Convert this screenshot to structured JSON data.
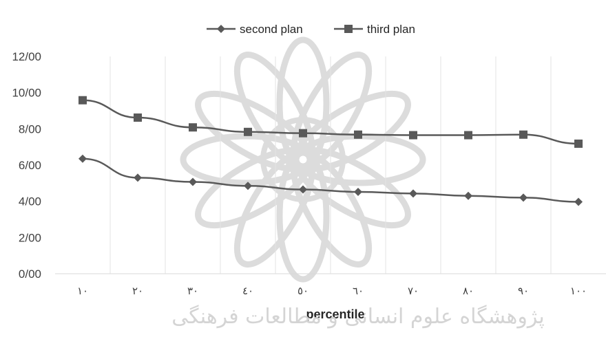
{
  "chart_data": {
    "type": "line",
    "categories": [
      "١٠",
      "٢٠",
      "٣٠",
      "٤٠",
      "٥٠",
      "٦٠",
      "٧٠",
      "٨٠",
      "٩٠",
      "١٠٠"
    ],
    "series": [
      {
        "name": "second plan",
        "marker": "diamond",
        "color": "#595959",
        "values": [
          6.35,
          5.3,
          5.07,
          4.85,
          4.65,
          4.52,
          4.43,
          4.3,
          4.2,
          3.97
        ]
      },
      {
        "name": "third plan",
        "marker": "square",
        "color": "#595959",
        "values": [
          9.58,
          8.62,
          8.08,
          7.83,
          7.76,
          7.68,
          7.65,
          7.65,
          7.68,
          7.18
        ]
      }
    ],
    "xlabel": "percentile",
    "ylabel": "",
    "ylim": [
      0,
      12
    ],
    "yticks": [
      "0/00",
      "2/00",
      "4/00",
      "6/00",
      "8/00",
      "10/00",
      "12/00"
    ],
    "grid": {
      "horizontal": false,
      "vertical": true
    },
    "legend_position": "top-center"
  },
  "watermark": {
    "text": "پژوهشگاه علوم انسانی و مطالعات فرهنگی"
  }
}
